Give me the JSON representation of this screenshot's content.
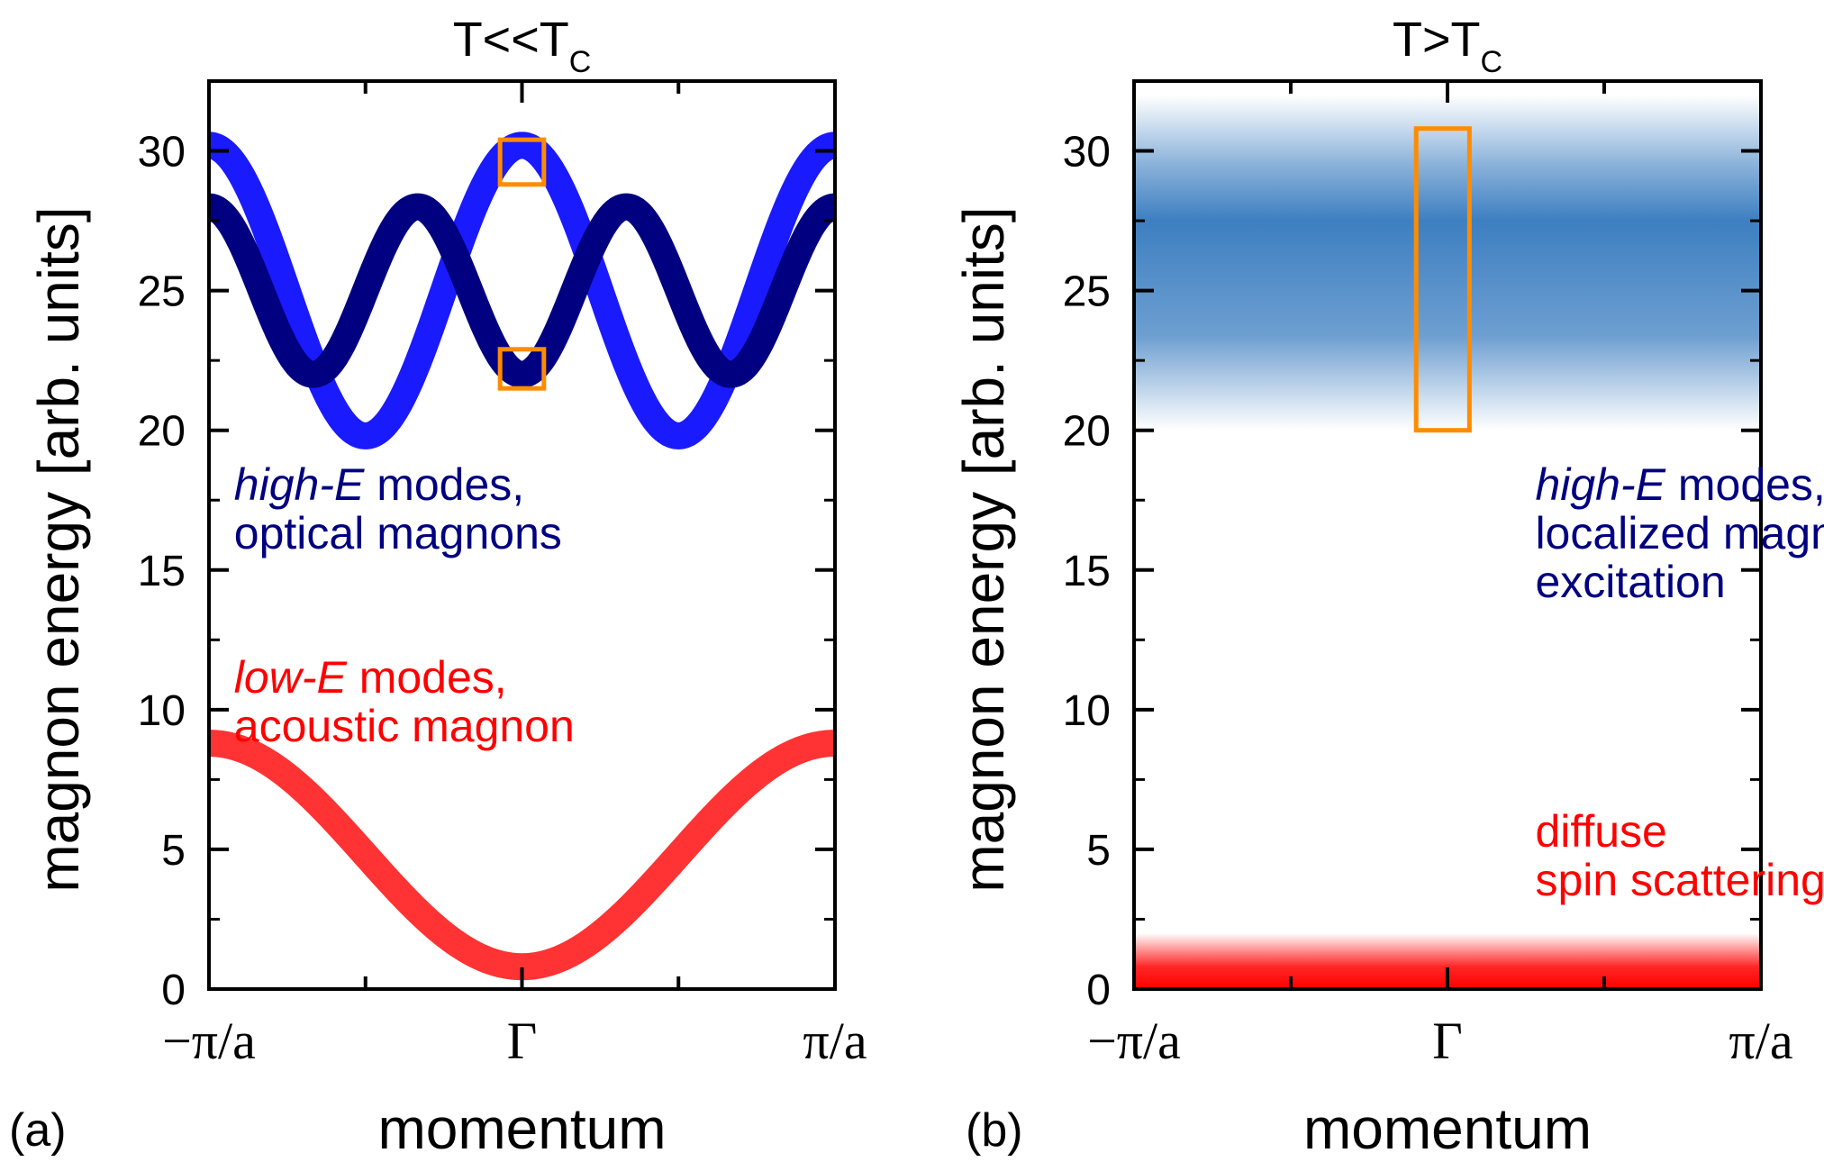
{
  "chart_data": [
    {
      "type": "line",
      "panel": "(a)",
      "title": {
        "main": "T<<T",
        "sub": "C"
      },
      "xlabel": "momentum",
      "ylabel": "magnon energy [arb. units]",
      "ylim": [
        0,
        32.5
      ],
      "yticks": [
        0,
        5,
        10,
        15,
        20,
        25,
        30
      ],
      "xticks": [
        {
          "x": -1,
          "label": "−π/a"
        },
        {
          "x": 0,
          "label": "Γ"
        },
        {
          "x": 1,
          "label": "π/a"
        }
      ],
      "series": [
        {
          "name": "high-E optical branch 1",
          "color": "#1a1aff",
          "fn": "cos",
          "offset": 25,
          "amp": 5.2,
          "freq": 2,
          "sign": 1,
          "from": -1,
          "to": 1
        },
        {
          "name": "high-E optical branch 2",
          "color": "#000080",
          "fn": "cos",
          "offset": 25,
          "amp": 3.0,
          "freq": 3,
          "sign": -1,
          "from": -1,
          "to": 1
        },
        {
          "name": "low-E acoustic",
          "color": "#ff3333",
          "fn": "cos",
          "offset": 4.8,
          "amp": 4.0,
          "freq": 1,
          "sign": -1,
          "from": -1,
          "to": 1
        }
      ],
      "boxes": [
        {
          "label": "high-E box top",
          "x0": -0.07,
          "x1": 0.07,
          "y0": 28.8,
          "y1": 30.4,
          "color": "#ff8c00"
        },
        {
          "label": "high-E box bottom",
          "x0": -0.07,
          "x1": 0.07,
          "y0": 21.5,
          "y1": 22.9,
          "color": "#ff8c00"
        }
      ],
      "annotations": [
        {
          "id": "a-high",
          "color": "#000080",
          "x": -0.92,
          "y": 17.5,
          "lines": [
            {
              "italic": "high-E",
              "rest": " modes,"
            },
            {
              "italic": "",
              "rest": "optical magnons"
            }
          ]
        },
        {
          "id": "a-low",
          "color": "#ff0000",
          "x": -0.92,
          "y": 10.6,
          "lines": [
            {
              "italic": "low-E",
              "rest": " modes,"
            },
            {
              "italic": "",
              "rest": "acoustic magnon"
            }
          ]
        }
      ]
    },
    {
      "type": "heatmap",
      "panel": "(b)",
      "title": {
        "main": "T>T",
        "sub": "C"
      },
      "xlabel": "momentum",
      "ylabel": "magnon energy [arb. units]",
      "ylim": [
        0,
        32.5
      ],
      "yticks": [
        0,
        5,
        10,
        15,
        20,
        25,
        30
      ],
      "xticks": [
        {
          "x": -1,
          "label": "−π/a"
        },
        {
          "x": 0,
          "label": "Γ"
        },
        {
          "x": 1,
          "label": "π/a"
        }
      ],
      "bands": [
        {
          "name": "localized magnetic excitation",
          "ymin": 20,
          "ymax": 32,
          "peak": 27.5,
          "color": "#3d7fc1"
        },
        {
          "name": "diffuse spin scattering",
          "ymin": 0,
          "ymax": 2,
          "peak": 0,
          "color": "#ff0000"
        }
      ],
      "boxes": [
        {
          "label": "high-E box",
          "x0": -0.1,
          "x1": 0.07,
          "y0": 20,
          "y1": 30.8,
          "color": "#ff8c00"
        }
      ],
      "annotations": [
        {
          "id": "b-high",
          "color": "#000080",
          "x": 0.28,
          "y": 17.5,
          "lines": [
            {
              "italic": "high-E",
              "rest": " modes,"
            },
            {
              "italic": "",
              "rest": "localized magnetic"
            },
            {
              "italic": "",
              "rest": "excitation"
            }
          ]
        },
        {
          "id": "b-low",
          "color": "#ff0000",
          "x": 0.28,
          "y": 5.1,
          "lines": [
            {
              "italic": "",
              "rest": "diffuse"
            },
            {
              "italic": "",
              "rest": "spin scattering"
            }
          ]
        }
      ]
    }
  ],
  "panel_letters": [
    "(a)",
    "(b)"
  ]
}
